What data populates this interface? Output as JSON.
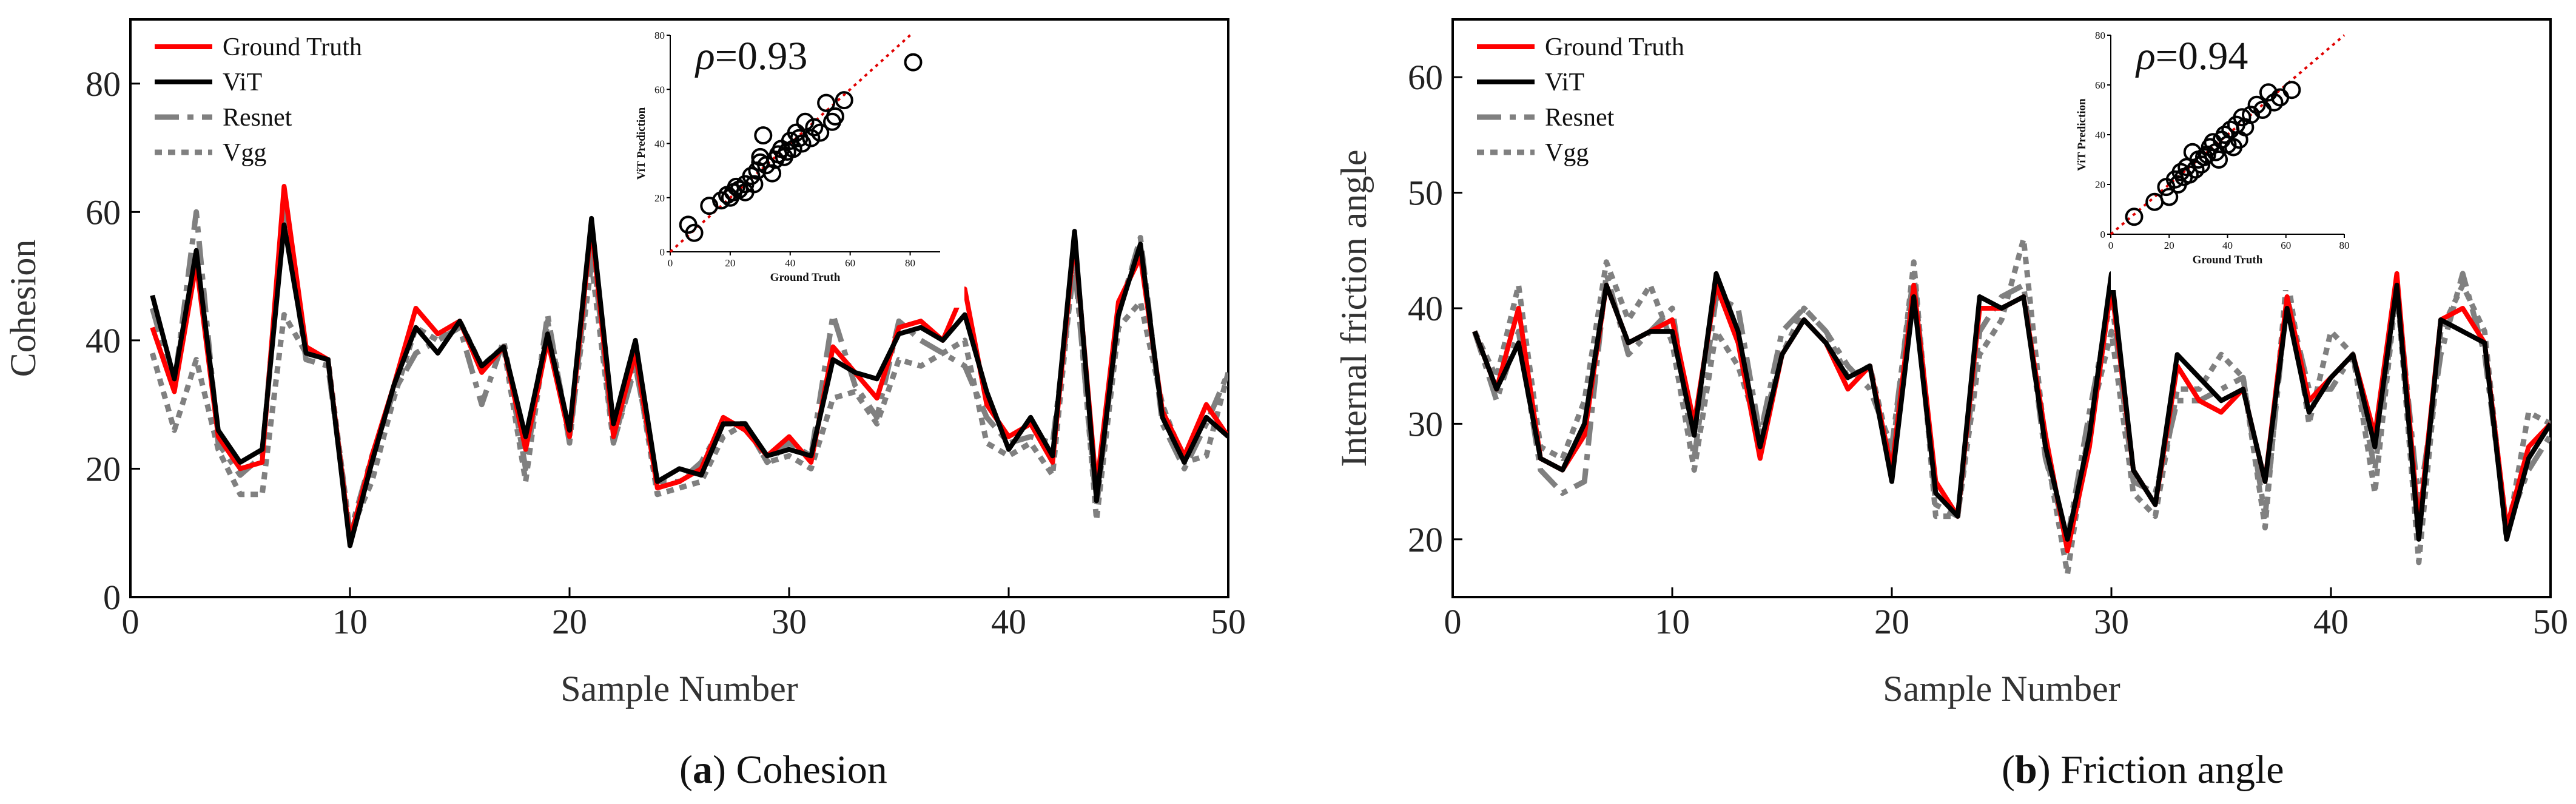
{
  "chart_data": [
    {
      "type": "line",
      "caption": {
        "letter": "a",
        "text": " Cohesion",
        "open": "(",
        "close": ")"
      },
      "xlabel": "Sample Number",
      "ylabel": "Cohesion",
      "xlim": [
        0,
        50
      ],
      "ylim": [
        0,
        90
      ],
      "xticks": [
        0,
        10,
        20,
        30,
        40,
        50
      ],
      "yticks": [
        0,
        20,
        40,
        60,
        80
      ],
      "x": [
        1,
        2,
        3,
        4,
        5,
        6,
        7,
        8,
        9,
        10,
        11,
        12,
        13,
        14,
        15,
        16,
        17,
        18,
        19,
        20,
        21,
        22,
        23,
        24,
        25,
        26,
        27,
        28,
        29,
        30,
        31,
        32,
        33,
        34,
        35,
        36,
        37,
        38,
        39,
        40,
        41,
        42,
        43,
        44,
        45,
        46,
        47,
        48,
        49,
        50
      ],
      "series": [
        {
          "name": "Ground Truth",
          "color": "#ff0000",
          "dash": "solid",
          "values": [
            42,
            32,
            52,
            25,
            20,
            21,
            64,
            39,
            37,
            9,
            22,
            33,
            45,
            41,
            43,
            35,
            39,
            23,
            40,
            25,
            58,
            25,
            38,
            17,
            18,
            20,
            28,
            26,
            22,
            25,
            21,
            39,
            35,
            31,
            42,
            43,
            40,
            48,
            30,
            25,
            27,
            21,
            56,
            17,
            46,
            53,
            29,
            22,
            30,
            25
          ]
        },
        {
          "name": "ViT",
          "color": "#000000",
          "dash": "solid",
          "values": [
            47,
            34,
            54,
            26,
            21,
            23,
            58,
            38,
            37,
            8,
            21,
            33,
            42,
            38,
            43,
            36,
            39,
            25,
            41,
            26,
            59,
            27,
            40,
            18,
            20,
            19,
            27,
            27,
            22,
            23,
            22,
            37,
            35,
            34,
            41,
            42,
            40,
            44,
            32,
            23,
            28,
            22,
            57,
            15,
            44,
            55,
            28,
            21,
            28,
            25
          ]
        },
        {
          "name": "Resnet",
          "color": "#808080",
          "dash": "dashdot",
          "values": [
            45,
            33,
            60,
            24,
            19,
            22,
            61,
            37,
            36,
            10,
            22,
            32,
            38,
            40,
            42,
            30,
            40,
            20,
            44,
            24,
            56,
            24,
            36,
            18,
            18,
            21,
            27,
            27,
            21,
            24,
            22,
            44,
            33,
            28,
            43,
            40,
            38,
            36,
            28,
            24,
            25,
            24,
            52,
            14,
            44,
            56,
            27,
            20,
            27,
            35
          ]
        },
        {
          "name": "Vgg",
          "color": "#808080",
          "dash": "dot",
          "values": [
            38,
            26,
            37,
            23,
            16,
            16,
            44,
            38,
            37,
            10,
            18,
            31,
            42,
            40,
            43,
            36,
            39,
            18,
            43,
            25,
            52,
            24,
            37,
            16,
            17,
            18,
            25,
            27,
            21,
            22,
            20,
            31,
            32,
            27,
            37,
            36,
            38,
            40,
            24,
            22,
            24,
            19,
            54,
            12,
            42,
            46,
            30,
            21,
            22,
            35
          ]
        }
      ],
      "inset": {
        "type": "scatter",
        "rho_symbol": "ρ",
        "rho_value": "=0.93",
        "xlabel": "Ground Truth",
        "ylabel": "ViT Prediction",
        "xlim": [
          0,
          90
        ],
        "ylim": [
          0,
          80
        ],
        "xticks": [
          0,
          20,
          40,
          60,
          80
        ],
        "yticks": [
          0,
          20,
          40,
          60,
          80
        ],
        "ref_line": [
          [
            0,
            0
          ],
          [
            80,
            80
          ]
        ],
        "x": [
          6,
          8,
          13,
          17,
          19,
          20,
          21,
          22,
          23,
          25,
          25,
          27,
          28,
          29,
          30,
          30,
          31,
          32,
          34,
          35,
          36,
          37,
          38,
          39,
          40,
          41,
          42,
          43,
          44,
          45,
          47,
          48,
          50,
          52,
          54,
          55,
          58,
          81
        ],
        "y": [
          10,
          7,
          17,
          19,
          21,
          20,
          22,
          24,
          23,
          25,
          22,
          28,
          25,
          30,
          33,
          35,
          43,
          32,
          29,
          34,
          36,
          38,
          35,
          37,
          41,
          38,
          44,
          42,
          40,
          48,
          42,
          46,
          44,
          55,
          48,
          50,
          56,
          70
        ]
      }
    },
    {
      "type": "line",
      "caption": {
        "letter": "b",
        "text": " Friction angle",
        "open": "(",
        "close": ")"
      },
      "xlabel": "Sample Number",
      "ylabel": "Internal friction angle",
      "xlim": [
        0,
        50
      ],
      "ylim": [
        15,
        65
      ],
      "xticks": [
        0,
        10,
        20,
        30,
        40,
        50
      ],
      "yticks": [
        20,
        30,
        40,
        50,
        60
      ],
      "x": [
        1,
        2,
        3,
        4,
        5,
        6,
        7,
        8,
        9,
        10,
        11,
        12,
        13,
        14,
        15,
        16,
        17,
        18,
        19,
        20,
        21,
        22,
        23,
        24,
        25,
        26,
        27,
        28,
        29,
        30,
        31,
        32,
        33,
        34,
        35,
        36,
        37,
        38,
        39,
        40,
        41,
        42,
        43,
        44,
        45,
        46,
        47,
        48,
        49,
        50
      ],
      "series": [
        {
          "name": "Ground Truth",
          "color": "#ff0000",
          "dash": "solid",
          "values": [
            38,
            33,
            40,
            27,
            26,
            29,
            42,
            37,
            38,
            39,
            30,
            42,
            37,
            27,
            36,
            39,
            37,
            33,
            35,
            26,
            42,
            25,
            22,
            40,
            40,
            41,
            29,
            19,
            28,
            42,
            26,
            23,
            35,
            32,
            31,
            33,
            25,
            41,
            32,
            34,
            36,
            29,
            43,
            21,
            39,
            40,
            37,
            21,
            28,
            30
          ]
        },
        {
          "name": "ViT",
          "color": "#000000",
          "dash": "solid",
          "values": [
            38,
            33,
            37,
            27,
            26,
            30,
            42,
            37,
            38,
            38,
            29,
            43,
            38,
            28,
            36,
            39,
            37,
            34,
            35,
            25,
            41,
            24,
            22,
            41,
            40,
            41,
            28,
            20,
            29,
            43,
            26,
            23,
            36,
            34,
            32,
            33,
            25,
            40,
            31,
            34,
            36,
            28,
            42,
            20,
            39,
            38,
            37,
            20,
            27,
            30
          ]
        },
        {
          "name": "Resnet",
          "color": "#808080",
          "dash": "dashdot",
          "values": [
            38,
            32,
            38,
            26,
            24,
            25,
            43,
            36,
            38,
            40,
            27,
            41,
            40,
            29,
            38,
            40,
            38,
            35,
            33,
            28,
            43,
            23,
            22,
            38,
            41,
            42,
            27,
            20,
            31,
            41,
            25,
            24,
            32,
            32,
            33,
            34,
            22,
            41,
            33,
            33,
            36,
            26,
            42,
            23,
            36,
            43,
            36,
            21,
            26,
            29
          ]
        },
        {
          "name": "Vgg",
          "color": "#808080",
          "dash": "dot",
          "values": [
            38,
            34,
            42,
            28,
            27,
            32,
            44,
            39,
            42,
            37,
            26,
            38,
            35,
            29,
            36,
            40,
            38,
            34,
            35,
            27,
            44,
            22,
            22,
            36,
            39,
            46,
            28,
            17,
            30,
            38,
            24,
            22,
            33,
            33,
            36,
            34,
            21,
            43,
            30,
            38,
            36,
            24,
            42,
            18,
            38,
            42,
            38,
            20,
            31,
            30
          ]
        }
      ],
      "inset": {
        "type": "scatter",
        "rho_symbol": "ρ",
        "rho_value": "=0.94",
        "xlabel": "Ground Truth",
        "ylabel": "ViT Prediction",
        "xlim": [
          0,
          80
        ],
        "ylim": [
          0,
          80
        ],
        "xticks": [
          0,
          20,
          40,
          60,
          80
        ],
        "yticks": [
          0,
          20,
          40,
          60,
          80
        ],
        "ref_line": [
          [
            0,
            0
          ],
          [
            80,
            80
          ]
        ],
        "x": [
          8,
          15,
          19,
          20,
          22,
          23,
          24,
          25,
          26,
          27,
          28,
          29,
          30,
          31,
          32,
          33,
          34,
          35,
          36,
          37,
          38,
          39,
          40,
          41,
          42,
          43,
          44,
          45,
          46,
          48,
          50,
          52,
          54,
          56,
          58,
          62
        ],
        "y": [
          7,
          13,
          19,
          15,
          22,
          20,
          25,
          23,
          27,
          24,
          33,
          26,
          30,
          28,
          31,
          32,
          35,
          37,
          33,
          30,
          38,
          40,
          36,
          42,
          35,
          44,
          38,
          47,
          43,
          48,
          52,
          50,
          57,
          53,
          55,
          58
        ]
      }
    }
  ]
}
